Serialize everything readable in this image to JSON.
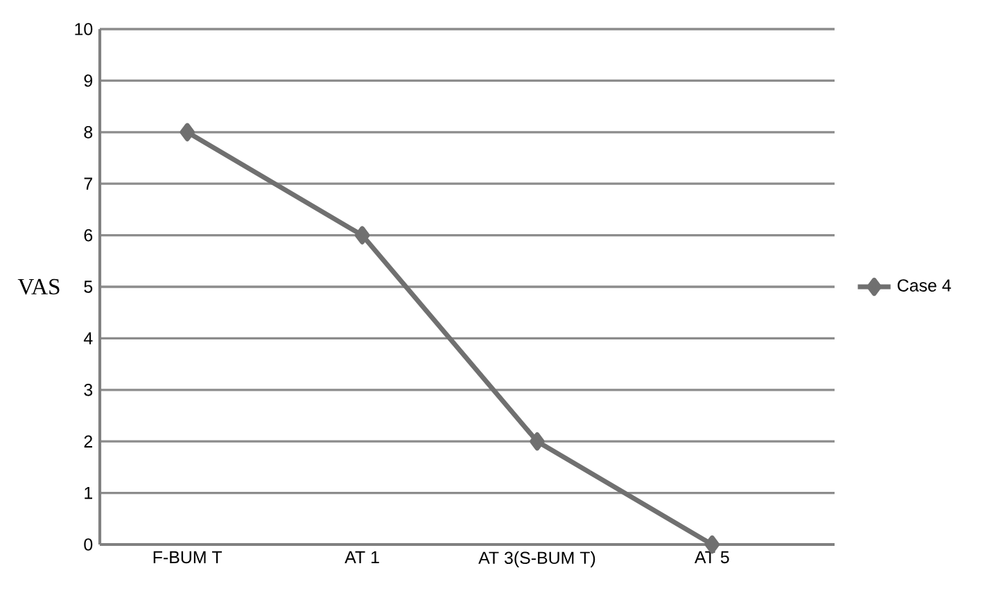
{
  "chart_data": {
    "type": "line",
    "ylabel": "VAS",
    "categories": [
      "F-BUM T",
      "AT 1",
      "AT 3(S-BUM T)",
      "AT 5"
    ],
    "series": [
      {
        "name": "Case 4",
        "color": "#707070",
        "values": [
          8,
          6,
          2,
          0
        ]
      }
    ],
    "ylim": [
      0,
      10
    ],
    "yticks": [
      0,
      1,
      2,
      3,
      4,
      5,
      6,
      7,
      8,
      9,
      10
    ],
    "grid": "y",
    "legend": "right",
    "marker": "diamond",
    "line_style": "solid"
  }
}
